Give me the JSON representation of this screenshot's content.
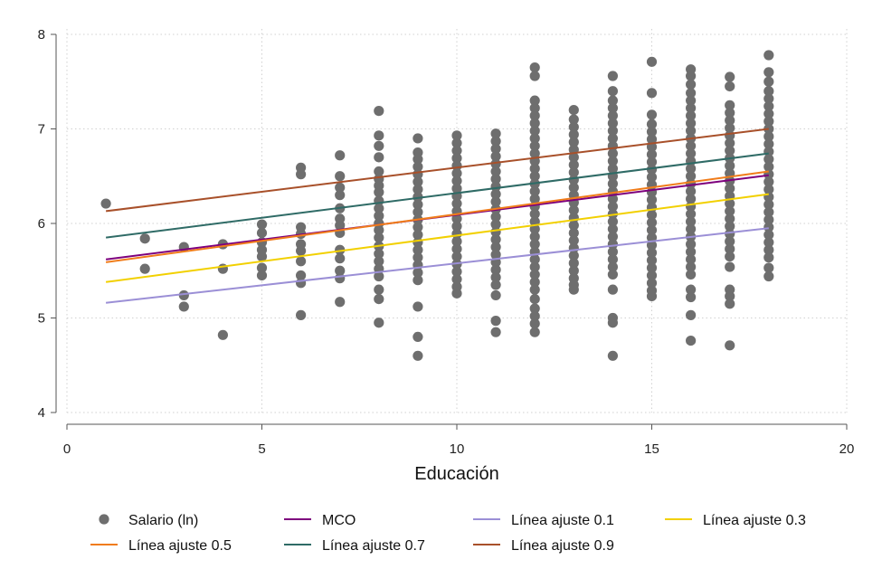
{
  "chart_data": {
    "type": "scatter",
    "title": "",
    "xlabel": "Educación",
    "ylabel": "",
    "xlim": [
      0,
      20
    ],
    "ylim": [
      4,
      8
    ],
    "x_ticks": [
      0,
      5,
      10,
      15,
      20
    ],
    "y_ticks": [
      4,
      5,
      6,
      7,
      8
    ],
    "grid": true,
    "legend_position": "bottom",
    "scatter": {
      "name": "Salario (ln)",
      "color": "#6e6e6e",
      "columns": [
        {
          "x": 1,
          "y": [
            6.21
          ]
        },
        {
          "x": 2,
          "y": [
            5.84,
            5.52
          ]
        },
        {
          "x": 3,
          "y": [
            5.75,
            5.24,
            5.12
          ]
        },
        {
          "x": 4,
          "y": [
            5.78,
            5.52,
            4.82
          ]
        },
        {
          "x": 5,
          "y": [
            5.99,
            5.9,
            5.8,
            5.72,
            5.65,
            5.53,
            5.45
          ]
        },
        {
          "x": 6,
          "y": [
            6.59,
            6.52,
            5.96,
            5.89,
            5.78,
            5.71,
            5.6,
            5.45,
            5.37,
            5.03
          ]
        },
        {
          "x": 7,
          "y": [
            6.72,
            6.5,
            6.38,
            6.3,
            6.16,
            6.05,
            5.98,
            5.9,
            5.72,
            5.63,
            5.5,
            5.42,
            5.17
          ]
        },
        {
          "x": 8,
          "y": [
            7.19,
            6.93,
            6.82,
            6.7,
            6.55,
            6.47,
            6.4,
            6.33,
            6.24,
            6.16,
            6.08,
            6.0,
            5.93,
            5.85,
            5.76,
            5.68,
            5.6,
            5.52,
            5.44,
            5.3,
            5.2,
            4.95
          ]
        },
        {
          "x": 9,
          "y": [
            6.9,
            6.75,
            6.68,
            6.6,
            6.52,
            6.44,
            6.36,
            6.28,
            6.2,
            6.12,
            6.04,
            5.96,
            5.88,
            5.8,
            5.72,
            5.64,
            5.56,
            5.48,
            5.4,
            5.12,
            4.8,
            4.6
          ]
        },
        {
          "x": 10,
          "y": [
            6.93,
            6.85,
            6.77,
            6.69,
            6.61,
            6.53,
            6.45,
            6.37,
            6.29,
            6.21,
            6.13,
            6.05,
            5.97,
            5.89,
            5.81,
            5.73,
            5.65,
            5.57,
            5.49,
            5.41,
            5.33,
            5.26
          ]
        },
        {
          "x": 11,
          "y": [
            6.95,
            6.87,
            6.79,
            6.71,
            6.63,
            6.55,
            6.47,
            6.39,
            6.31,
            6.23,
            6.15,
            6.07,
            5.99,
            5.91,
            5.83,
            5.75,
            5.67,
            5.59,
            5.51,
            5.43,
            5.35,
            5.24,
            4.97,
            4.85
          ]
        },
        {
          "x": 12,
          "y": [
            7.65,
            7.56,
            7.3,
            7.22,
            7.14,
            7.06,
            6.98,
            6.9,
            6.82,
            6.74,
            6.66,
            6.58,
            6.5,
            6.42,
            6.34,
            6.26,
            6.18,
            6.1,
            6.02,
            5.94,
            5.86,
            5.78,
            5.7,
            5.62,
            5.54,
            5.46,
            5.38,
            5.3,
            5.2,
            5.1,
            5.02,
            4.94,
            4.85
          ]
        },
        {
          "x": 13,
          "y": [
            7.2,
            7.1,
            7.02,
            6.94,
            6.86,
            6.78,
            6.7,
            6.62,
            6.54,
            6.46,
            6.38,
            6.3,
            6.22,
            6.14,
            6.06,
            5.98,
            5.9,
            5.82,
            5.74,
            5.66,
            5.58,
            5.5,
            5.42,
            5.35,
            5.3
          ]
        },
        {
          "x": 14,
          "y": [
            7.56,
            7.4,
            7.3,
            7.22,
            7.14,
            7.06,
            6.98,
            6.9,
            6.82,
            6.74,
            6.66,
            6.58,
            6.5,
            6.42,
            6.34,
            6.26,
            6.18,
            6.1,
            6.02,
            5.94,
            5.86,
            5.78,
            5.7,
            5.62,
            5.54,
            5.46,
            5.3,
            5.0,
            4.95,
            4.6
          ]
        },
        {
          "x": 15,
          "y": [
            7.71,
            7.38,
            7.15,
            7.05,
            6.97,
            6.89,
            6.81,
            6.73,
            6.65,
            6.57,
            6.49,
            6.41,
            6.33,
            6.25,
            6.17,
            6.09,
            6.01,
            5.93,
            5.85,
            5.77,
            5.69,
            5.61,
            5.53,
            5.45,
            5.37,
            5.29,
            5.23
          ]
        },
        {
          "x": 16,
          "y": [
            7.63,
            7.56,
            7.47,
            7.38,
            7.3,
            7.22,
            7.14,
            7.06,
            6.98,
            6.9,
            6.82,
            6.74,
            6.66,
            6.58,
            6.5,
            6.42,
            6.34,
            6.26,
            6.18,
            6.1,
            6.02,
            5.94,
            5.86,
            5.78,
            5.7,
            5.62,
            5.54,
            5.46,
            5.3,
            5.22,
            5.03,
            4.76
          ]
        },
        {
          "x": 17,
          "y": [
            7.55,
            7.45,
            7.25,
            7.17,
            7.09,
            7.01,
            6.93,
            6.85,
            6.77,
            6.69,
            6.61,
            6.53,
            6.45,
            6.37,
            6.29,
            6.21,
            6.13,
            6.05,
            5.97,
            5.89,
            5.81,
            5.73,
            5.65,
            5.54,
            5.3,
            5.23,
            5.15,
            4.71
          ]
        },
        {
          "x": 18,
          "y": [
            7.78,
            7.6,
            7.5,
            7.4,
            7.32,
            7.24,
            7.16,
            7.08,
            7.0,
            6.92,
            6.84,
            6.76,
            6.68,
            6.6,
            6.52,
            6.44,
            6.36,
            6.28,
            6.2,
            6.12,
            6.04,
            5.96,
            5.88,
            5.8,
            5.72,
            5.64,
            5.53,
            5.44
          ]
        }
      ]
    },
    "lines": [
      {
        "name": "MCO",
        "color": "#7d007d",
        "x": [
          1,
          18
        ],
        "y": [
          5.62,
          6.51
        ]
      },
      {
        "name": "Línea ajuste 0.1",
        "color": "#9b8fd6",
        "x": [
          1,
          18
        ],
        "y": [
          5.16,
          5.95
        ]
      },
      {
        "name": "Línea ajuste 0.3",
        "color": "#f2d000",
        "x": [
          1,
          18
        ],
        "y": [
          5.38,
          6.31
        ]
      },
      {
        "name": "Línea ajuste 0.5",
        "color": "#f07c1a",
        "x": [
          1,
          18
        ],
        "y": [
          5.59,
          6.55
        ]
      },
      {
        "name": "Línea ajuste 0.7",
        "color": "#2f6b66",
        "x": [
          1,
          18
        ],
        "y": [
          5.85,
          6.74
        ]
      },
      {
        "name": "Línea ajuste 0.9",
        "color": "#a8502a",
        "x": [
          1,
          18
        ],
        "y": [
          6.13,
          7.0
        ]
      }
    ],
    "legend": [
      {
        "label": "Salario (ln)",
        "kind": "marker",
        "color": "#6e6e6e"
      },
      {
        "label": "MCO",
        "kind": "line",
        "color": "#7d007d"
      },
      {
        "label": "Línea ajuste 0.1",
        "kind": "line",
        "color": "#9b8fd6"
      },
      {
        "label": "Línea ajuste 0.3",
        "kind": "line",
        "color": "#f2d000"
      },
      {
        "label": "Línea ajuste 0.5",
        "kind": "line",
        "color": "#f07c1a"
      },
      {
        "label": "Línea ajuste 0.7",
        "kind": "line",
        "color": "#2f6b66"
      },
      {
        "label": "Línea ajuste 0.9",
        "kind": "line",
        "color": "#a8502a"
      }
    ]
  }
}
